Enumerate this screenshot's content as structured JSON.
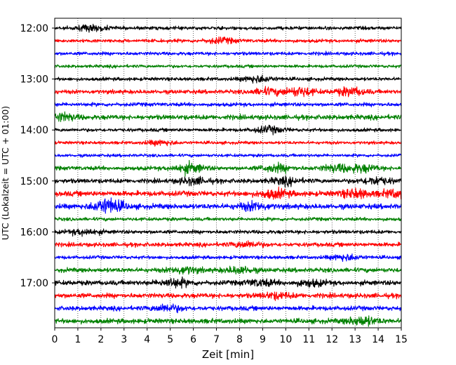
{
  "chart_data": {
    "type": "line",
    "subtype": "helicorder",
    "title": "",
    "xlabel": "Zeit  [min]",
    "ylabel": "UTC (Lokalzeit = UTC + 01:00)",
    "xlim": [
      0,
      15
    ],
    "x_ticks": [
      "0",
      "1",
      "2",
      "3",
      "4",
      "5",
      "6",
      "7",
      "8",
      "9",
      "10",
      "11",
      "12",
      "13",
      "14",
      "15"
    ],
    "y_tick_labels": [
      "12:00",
      "13:00",
      "14:00",
      "15:00",
      "16:00",
      "17:00"
    ],
    "x_grid": "dotted vertical lines at each minute",
    "line_color_cycle": [
      "#000000",
      "#ff0000",
      "#0000ff",
      "#008000"
    ],
    "traces": [
      {
        "start": "12:00",
        "color": "#000000",
        "amplitude": 1.0,
        "bursts": [
          [
            1.6,
            1.5
          ]
        ]
      },
      {
        "start": "12:15",
        "color": "#ff0000",
        "amplitude": 1.0,
        "bursts": [
          [
            7.2,
            1.3
          ]
        ]
      },
      {
        "start": "12:30",
        "color": "#0000ff",
        "amplitude": 1.0,
        "bursts": []
      },
      {
        "start": "12:45",
        "color": "#008000",
        "amplitude": 0.9,
        "bursts": []
      },
      {
        "start": "13:00",
        "color": "#000000",
        "amplitude": 1.0,
        "bursts": [
          [
            8.8,
            1.8
          ]
        ]
      },
      {
        "start": "13:15",
        "color": "#ff0000",
        "amplitude": 1.2,
        "bursts": [
          [
            9.2,
            1.5
          ],
          [
            10.6,
            2.3
          ],
          [
            12.8,
            2.0
          ]
        ]
      },
      {
        "start": "13:30",
        "color": "#0000ff",
        "amplitude": 1.1,
        "bursts": []
      },
      {
        "start": "13:45",
        "color": "#008000",
        "amplitude": 1.4,
        "bursts": [
          [
            0.3,
            1.8
          ]
        ]
      },
      {
        "start": "14:00",
        "color": "#000000",
        "amplitude": 1.0,
        "bursts": [
          [
            9.3,
            1.6
          ]
        ]
      },
      {
        "start": "14:15",
        "color": "#ff0000",
        "amplitude": 0.9,
        "bursts": [
          [
            4.6,
            1.2
          ]
        ]
      },
      {
        "start": "14:30",
        "color": "#0000ff",
        "amplitude": 0.9,
        "bursts": []
      },
      {
        "start": "14:45",
        "color": "#008000",
        "amplitude": 1.2,
        "bursts": [
          [
            5.8,
            2.4
          ],
          [
            9.6,
            1.9
          ],
          [
            12.2,
            1.7
          ],
          [
            13.3,
            1.8
          ]
        ]
      },
      {
        "start": "15:00",
        "color": "#000000",
        "amplitude": 1.3,
        "bursts": [
          [
            6.0,
            1.6
          ],
          [
            10.0,
            1.6
          ],
          [
            13.9,
            1.8
          ]
        ]
      },
      {
        "start": "15:15",
        "color": "#ff0000",
        "amplitude": 1.5,
        "bursts": [
          [
            9.5,
            2.0
          ],
          [
            13.0,
            2.0
          ],
          [
            14.8,
            1.8
          ]
        ]
      },
      {
        "start": "15:30",
        "color": "#0000ff",
        "amplitude": 1.5,
        "bursts": [
          [
            2.3,
            4.0
          ],
          [
            8.6,
            1.8
          ]
        ]
      },
      {
        "start": "15:45",
        "color": "#008000",
        "amplitude": 1.0,
        "bursts": []
      },
      {
        "start": "16:00",
        "color": "#000000",
        "amplitude": 1.1,
        "bursts": [
          [
            1.3,
            1.5
          ]
        ]
      },
      {
        "start": "16:15",
        "color": "#ff0000",
        "amplitude": 1.2,
        "bursts": [
          [
            8.3,
            1.4
          ]
        ]
      },
      {
        "start": "16:30",
        "color": "#0000ff",
        "amplitude": 1.0,
        "bursts": [
          [
            12.6,
            1.6
          ]
        ]
      },
      {
        "start": "16:45",
        "color": "#008000",
        "amplitude": 1.3,
        "bursts": [
          [
            5.6,
            1.6
          ],
          [
            8.0,
            1.6
          ]
        ]
      },
      {
        "start": "17:00",
        "color": "#000000",
        "amplitude": 1.4,
        "bursts": [
          [
            5.2,
            2.0
          ],
          [
            8.9,
            1.5
          ],
          [
            11.1,
            1.4
          ]
        ]
      },
      {
        "start": "17:15",
        "color": "#ff0000",
        "amplitude": 1.4,
        "bursts": [
          [
            9.6,
            1.4
          ]
        ]
      },
      {
        "start": "17:30",
        "color": "#0000ff",
        "amplitude": 1.3,
        "bursts": [
          [
            4.9,
            1.7
          ]
        ]
      },
      {
        "start": "17:45",
        "color": "#008000",
        "amplitude": 1.4,
        "bursts": [
          [
            13.3,
            2.2
          ]
        ]
      }
    ]
  }
}
